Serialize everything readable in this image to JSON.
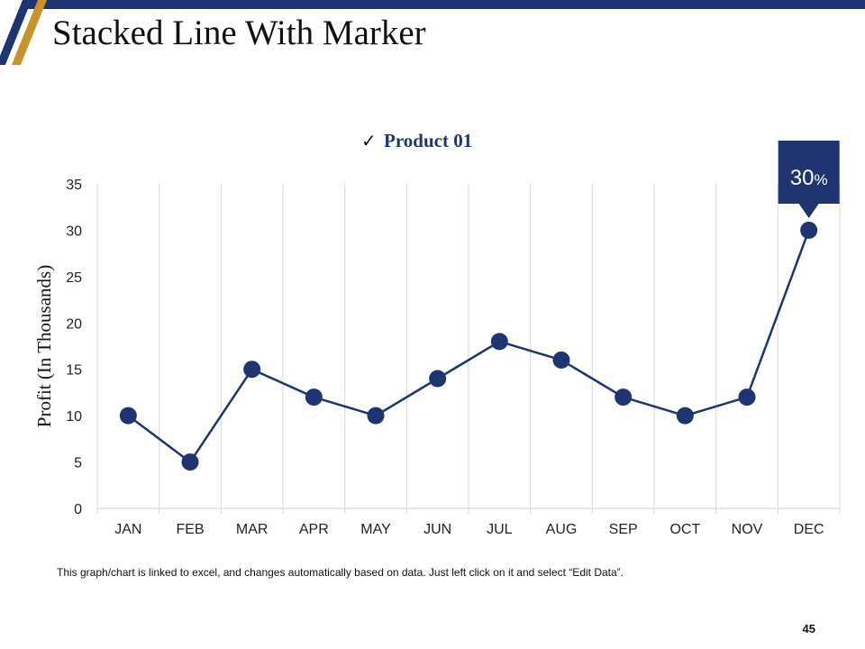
{
  "slide": {
    "title": "Stacked Line With Marker",
    "footnote": "This graph/chart is linked to excel, and changes automatically based on data. Just left click on it and select “Edit Data”.",
    "page_number": "45"
  },
  "colors": {
    "navy": "#1f3471",
    "gold": "#c9922b",
    "grid": "#d9d9d9"
  },
  "chart_data": {
    "type": "line",
    "title": "",
    "xlabel": "",
    "ylabel": "Profit (In Thousands)",
    "categories": [
      "JAN",
      "FEB",
      "MAR",
      "APR",
      "MAY",
      "JUN",
      "JUL",
      "AUG",
      "SEP",
      "OCT",
      "NOV",
      "DEC"
    ],
    "series": [
      {
        "name": "Product 01",
        "values": [
          10,
          5,
          15,
          12,
          10,
          14,
          18,
          16,
          12,
          10,
          12,
          30
        ]
      }
    ],
    "ylim": [
      0,
      35
    ],
    "yticks": [
      0,
      5,
      10,
      15,
      20,
      25,
      30,
      35
    ],
    "grid": "vertical",
    "legend": {
      "position": "top-center",
      "mark": "✓",
      "label": "Product 01"
    },
    "callout": {
      "category": "DEC",
      "number": "30",
      "unit": "%"
    }
  }
}
